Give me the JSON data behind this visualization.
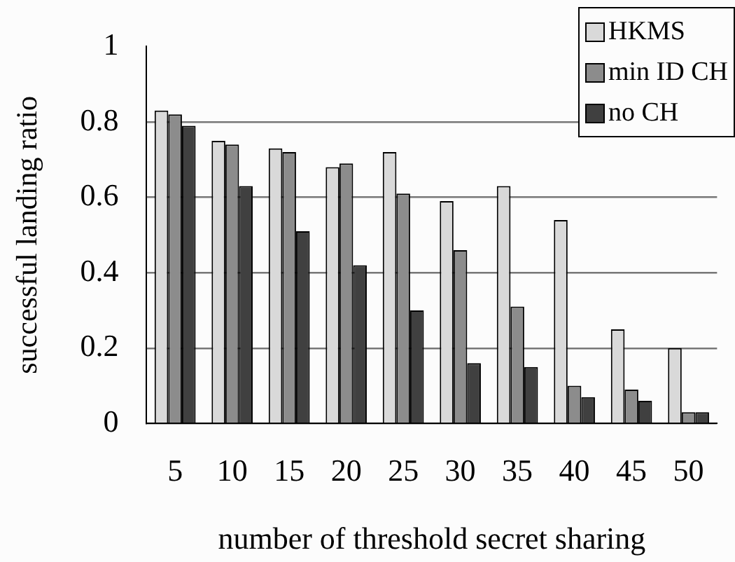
{
  "chart_data": {
    "type": "bar",
    "xlabel": "number of threshold secret sharing",
    "ylabel": "successful landing ratio",
    "categories": [
      "5",
      "10",
      "15",
      "20",
      "25",
      "30",
      "35",
      "40",
      "45",
      "50"
    ],
    "series": [
      {
        "name": "HKMS",
        "color": "#d9d9d9",
        "values": [
          0.83,
          0.75,
          0.73,
          0.68,
          0.72,
          0.59,
          0.63,
          0.54,
          0.25,
          0.2
        ]
      },
      {
        "name": "min ID CH",
        "color": "#8c8c8c",
        "values": [
          0.82,
          0.74,
          0.72,
          0.69,
          0.61,
          0.46,
          0.31,
          0.1,
          0.09,
          0.03
        ]
      },
      {
        "name": "no CH",
        "color": "#404040",
        "values": [
          0.79,
          0.63,
          0.51,
          0.42,
          0.3,
          0.16,
          0.15,
          0.07,
          0.06,
          0.03
        ]
      }
    ],
    "ylim": [
      0,
      1
    ],
    "yticks": [
      0,
      0.2,
      0.4,
      0.6,
      0.8,
      1
    ],
    "grid": "y",
    "legend": "top right"
  }
}
